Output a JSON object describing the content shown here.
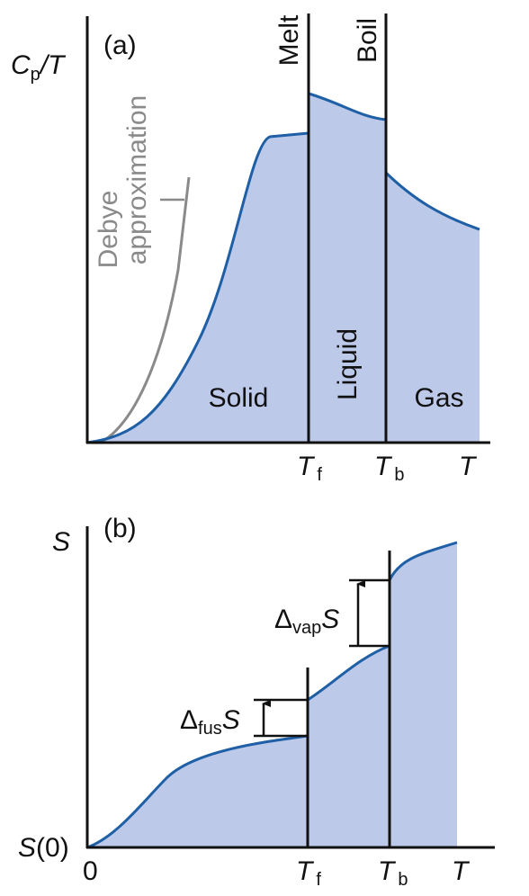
{
  "panel_a": {
    "label": "(a)",
    "y_axis": {
      "symbol": "C",
      "subscript": "p",
      "suffix": "/T"
    },
    "x_ticks": [
      {
        "symbol": "T",
        "subscript": "f"
      },
      {
        "symbol": "T",
        "subscript": "b"
      },
      {
        "symbol": "T"
      }
    ],
    "lines": [
      "Melt",
      "Boil"
    ],
    "regions": [
      "Solid",
      "Liquid",
      "Gas"
    ],
    "debye": [
      "Debye",
      "approximation"
    ]
  },
  "panel_b": {
    "label": "(b)",
    "y_axis": "S",
    "origin_y": {
      "symbol": "S",
      "suffix": "(0)"
    },
    "origin_x": "0",
    "x_ticks": [
      {
        "symbol": "T",
        "subscript": "f"
      },
      {
        "symbol": "T",
        "subscript": "b"
      },
      {
        "symbol": "T"
      }
    ],
    "steps": [
      {
        "delta": "Δ",
        "subscript": "fus",
        "symbol": "S"
      },
      {
        "delta": "Δ",
        "subscript": "vap",
        "symbol": "S"
      }
    ]
  }
}
